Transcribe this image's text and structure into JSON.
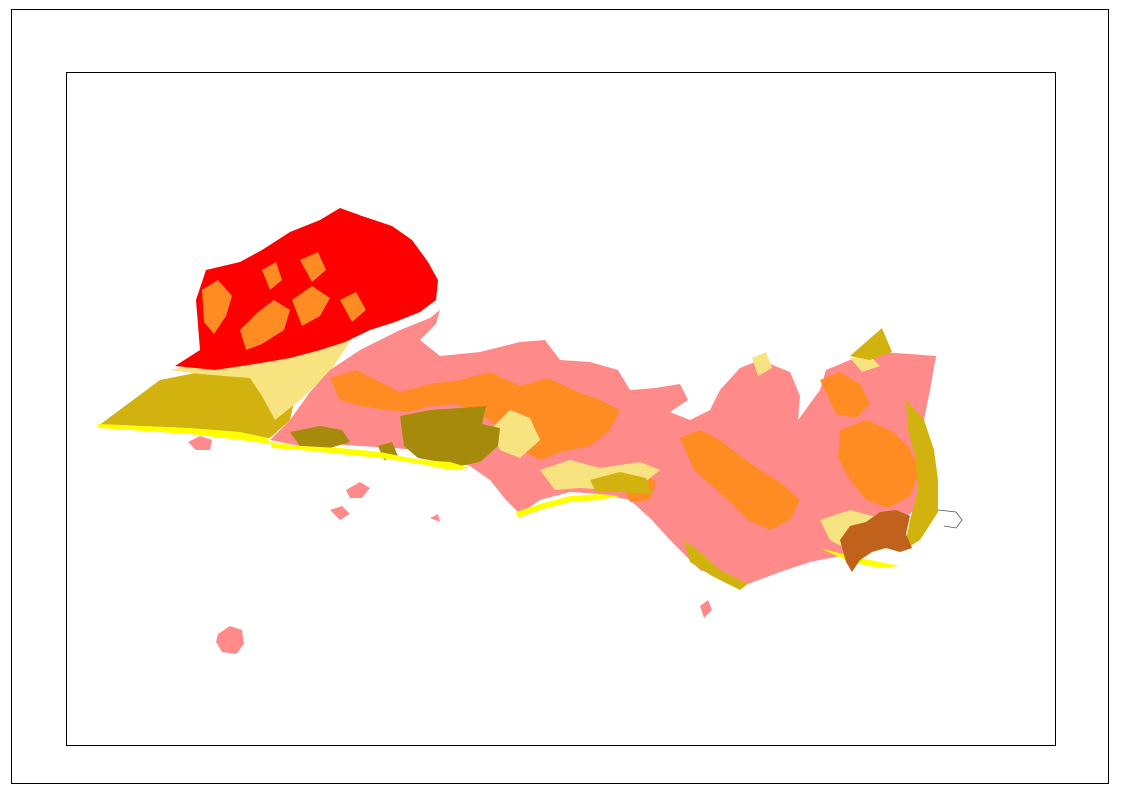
{
  "map": {
    "colors": {
      "zone_red": "#ff0000",
      "zone_pink": "#ff8a8a",
      "zone_orange": "#ff8c22",
      "zone_olive": "#d1b20f",
      "zone_dark_olive": "#a68a0c",
      "zone_light_yellow": "#f8e381",
      "zone_brown": "#c0621b",
      "zone_coast_yellow": "#ffff00"
    }
  }
}
